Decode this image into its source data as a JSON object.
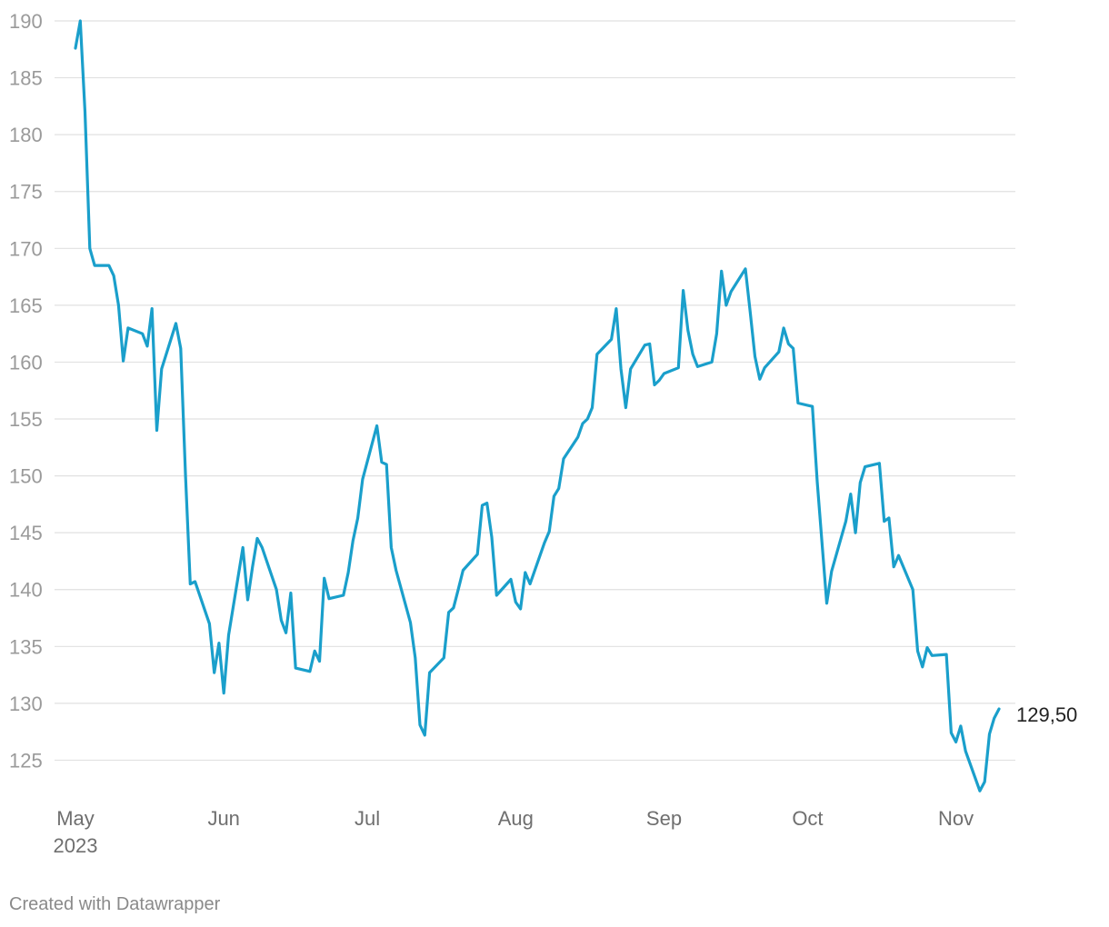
{
  "footer": "Created with Datawrapper",
  "chart_data": {
    "type": "line",
    "title": "",
    "xlabel": "",
    "ylabel": "",
    "color": "#1a9fcb",
    "grid": true,
    "ylim": [
      122,
      190
    ],
    "y_ticks": [
      125,
      130,
      135,
      140,
      145,
      150,
      155,
      160,
      165,
      170,
      175,
      180,
      185,
      190
    ],
    "x_ticks": [
      {
        "date": "2023-05-01",
        "label": "May",
        "sublabel": "2023"
      },
      {
        "date": "2023-06-01",
        "label": "Jun"
      },
      {
        "date": "2023-07-01",
        "label": "Jul"
      },
      {
        "date": "2023-08-01",
        "label": "Aug"
      },
      {
        "date": "2023-09-01",
        "label": "Sep"
      },
      {
        "date": "2023-10-01",
        "label": "Oct"
      },
      {
        "date": "2023-11-01",
        "label": "Nov"
      }
    ],
    "end_label": "129,50",
    "series": [
      {
        "name": "",
        "points": [
          [
            "2023-05-01",
            187.6
          ],
          [
            "2023-05-02",
            190.0
          ],
          [
            "2023-05-03",
            182.0
          ],
          [
            "2023-05-04",
            170.0
          ],
          [
            "2023-05-05",
            168.5
          ],
          [
            "2023-05-08",
            168.5
          ],
          [
            "2023-05-09",
            167.6
          ],
          [
            "2023-05-10",
            165.0
          ],
          [
            "2023-05-11",
            160.1
          ],
          [
            "2023-05-12",
            163.0
          ],
          [
            "2023-05-15",
            162.5
          ],
          [
            "2023-05-16",
            161.4
          ],
          [
            "2023-05-17",
            164.7
          ],
          [
            "2023-05-18",
            154.0
          ],
          [
            "2023-05-19",
            159.4
          ],
          [
            "2023-05-22",
            163.4
          ],
          [
            "2023-05-23",
            161.2
          ],
          [
            "2023-05-24",
            150.0
          ],
          [
            "2023-05-25",
            140.5
          ],
          [
            "2023-05-26",
            140.7
          ],
          [
            "2023-05-29",
            137.0
          ],
          [
            "2023-05-30",
            132.7
          ],
          [
            "2023-05-31",
            135.3
          ],
          [
            "2023-06-01",
            130.9
          ],
          [
            "2023-06-02",
            136.0
          ],
          [
            "2023-06-05",
            143.7
          ],
          [
            "2023-06-06",
            139.1
          ],
          [
            "2023-06-07",
            142.0
          ],
          [
            "2023-06-08",
            144.5
          ],
          [
            "2023-06-09",
            143.7
          ],
          [
            "2023-06-12",
            140.0
          ],
          [
            "2023-06-13",
            137.3
          ],
          [
            "2023-06-14",
            136.2
          ],
          [
            "2023-06-15",
            139.7
          ],
          [
            "2023-06-16",
            133.1
          ],
          [
            "2023-06-19",
            132.8
          ],
          [
            "2023-06-20",
            134.6
          ],
          [
            "2023-06-21",
            133.7
          ],
          [
            "2023-06-22",
            141.0
          ],
          [
            "2023-06-23",
            139.2
          ],
          [
            "2023-06-26",
            139.5
          ],
          [
            "2023-06-27",
            141.5
          ],
          [
            "2023-06-28",
            144.3
          ],
          [
            "2023-06-29",
            146.3
          ],
          [
            "2023-06-30",
            149.7
          ],
          [
            "2023-07-03",
            154.4
          ],
          [
            "2023-07-04",
            151.2
          ],
          [
            "2023-07-05",
            151.0
          ],
          [
            "2023-07-06",
            143.7
          ],
          [
            "2023-07-07",
            141.7
          ],
          [
            "2023-07-10",
            137.1
          ],
          [
            "2023-07-11",
            134.0
          ],
          [
            "2023-07-12",
            128.1
          ],
          [
            "2023-07-13",
            127.2
          ],
          [
            "2023-07-14",
            132.7
          ],
          [
            "2023-07-17",
            134.0
          ],
          [
            "2023-07-18",
            138.0
          ],
          [
            "2023-07-19",
            138.4
          ],
          [
            "2023-07-20",
            140.0
          ],
          [
            "2023-07-21",
            141.7
          ],
          [
            "2023-07-24",
            143.1
          ],
          [
            "2023-07-25",
            147.4
          ],
          [
            "2023-07-26",
            147.6
          ],
          [
            "2023-07-27",
            144.6
          ],
          [
            "2023-07-28",
            139.5
          ],
          [
            "2023-07-31",
            140.9
          ],
          [
            "2023-08-01",
            138.9
          ],
          [
            "2023-08-02",
            138.3
          ],
          [
            "2023-08-03",
            141.5
          ],
          [
            "2023-08-04",
            140.5
          ],
          [
            "2023-08-07",
            144.1
          ],
          [
            "2023-08-08",
            145.1
          ],
          [
            "2023-08-09",
            148.2
          ],
          [
            "2023-08-10",
            148.9
          ],
          [
            "2023-08-11",
            151.5
          ],
          [
            "2023-08-14",
            153.4
          ],
          [
            "2023-08-15",
            154.6
          ],
          [
            "2023-08-16",
            155.0
          ],
          [
            "2023-08-17",
            156.0
          ],
          [
            "2023-08-18",
            160.7
          ],
          [
            "2023-08-21",
            162.0
          ],
          [
            "2023-08-22",
            164.7
          ],
          [
            "2023-08-23",
            159.4
          ],
          [
            "2023-08-24",
            156.0
          ],
          [
            "2023-08-25",
            159.4
          ],
          [
            "2023-08-28",
            161.5
          ],
          [
            "2023-08-29",
            161.6
          ],
          [
            "2023-08-30",
            158.0
          ],
          [
            "2023-08-31",
            158.4
          ],
          [
            "2023-09-01",
            159.0
          ],
          [
            "2023-09-04",
            159.5
          ],
          [
            "2023-09-05",
            166.3
          ],
          [
            "2023-09-06",
            162.8
          ],
          [
            "2023-09-07",
            160.7
          ],
          [
            "2023-09-08",
            159.6
          ],
          [
            "2023-09-11",
            160.0
          ],
          [
            "2023-09-12",
            162.5
          ],
          [
            "2023-09-13",
            168.0
          ],
          [
            "2023-09-14",
            165.0
          ],
          [
            "2023-09-15",
            166.2
          ],
          [
            "2023-09-18",
            168.2
          ],
          [
            "2023-09-19",
            164.4
          ],
          [
            "2023-09-20",
            160.5
          ],
          [
            "2023-09-21",
            158.5
          ],
          [
            "2023-09-22",
            159.5
          ],
          [
            "2023-09-25",
            160.9
          ],
          [
            "2023-09-26",
            163.0
          ],
          [
            "2023-09-27",
            161.6
          ],
          [
            "2023-09-28",
            161.2
          ],
          [
            "2023-09-29",
            156.4
          ],
          [
            "2023-10-02",
            156.1
          ],
          [
            "2023-10-03",
            149.5
          ],
          [
            "2023-10-04",
            144.2
          ],
          [
            "2023-10-05",
            138.8
          ],
          [
            "2023-10-06",
            141.6
          ],
          [
            "2023-10-09",
            146.0
          ],
          [
            "2023-10-10",
            148.4
          ],
          [
            "2023-10-11",
            145.0
          ],
          [
            "2023-10-12",
            149.4
          ],
          [
            "2023-10-13",
            150.8
          ],
          [
            "2023-10-16",
            151.1
          ],
          [
            "2023-10-17",
            146.0
          ],
          [
            "2023-10-18",
            146.3
          ],
          [
            "2023-10-19",
            142.0
          ],
          [
            "2023-10-20",
            143.0
          ],
          [
            "2023-10-23",
            140.0
          ],
          [
            "2023-10-24",
            134.6
          ],
          [
            "2023-10-25",
            133.2
          ],
          [
            "2023-10-26",
            134.9
          ],
          [
            "2023-10-27",
            134.2
          ],
          [
            "2023-10-30",
            134.3
          ],
          [
            "2023-10-31",
            127.4
          ],
          [
            "2023-11-01",
            126.6
          ],
          [
            "2023-11-02",
            128.0
          ],
          [
            "2023-11-03",
            125.8
          ],
          [
            "2023-11-06",
            122.3
          ],
          [
            "2023-11-07",
            123.1
          ],
          [
            "2023-11-08",
            127.3
          ],
          [
            "2023-11-09",
            128.7
          ],
          [
            "2023-11-10",
            129.5
          ]
        ]
      }
    ]
  }
}
